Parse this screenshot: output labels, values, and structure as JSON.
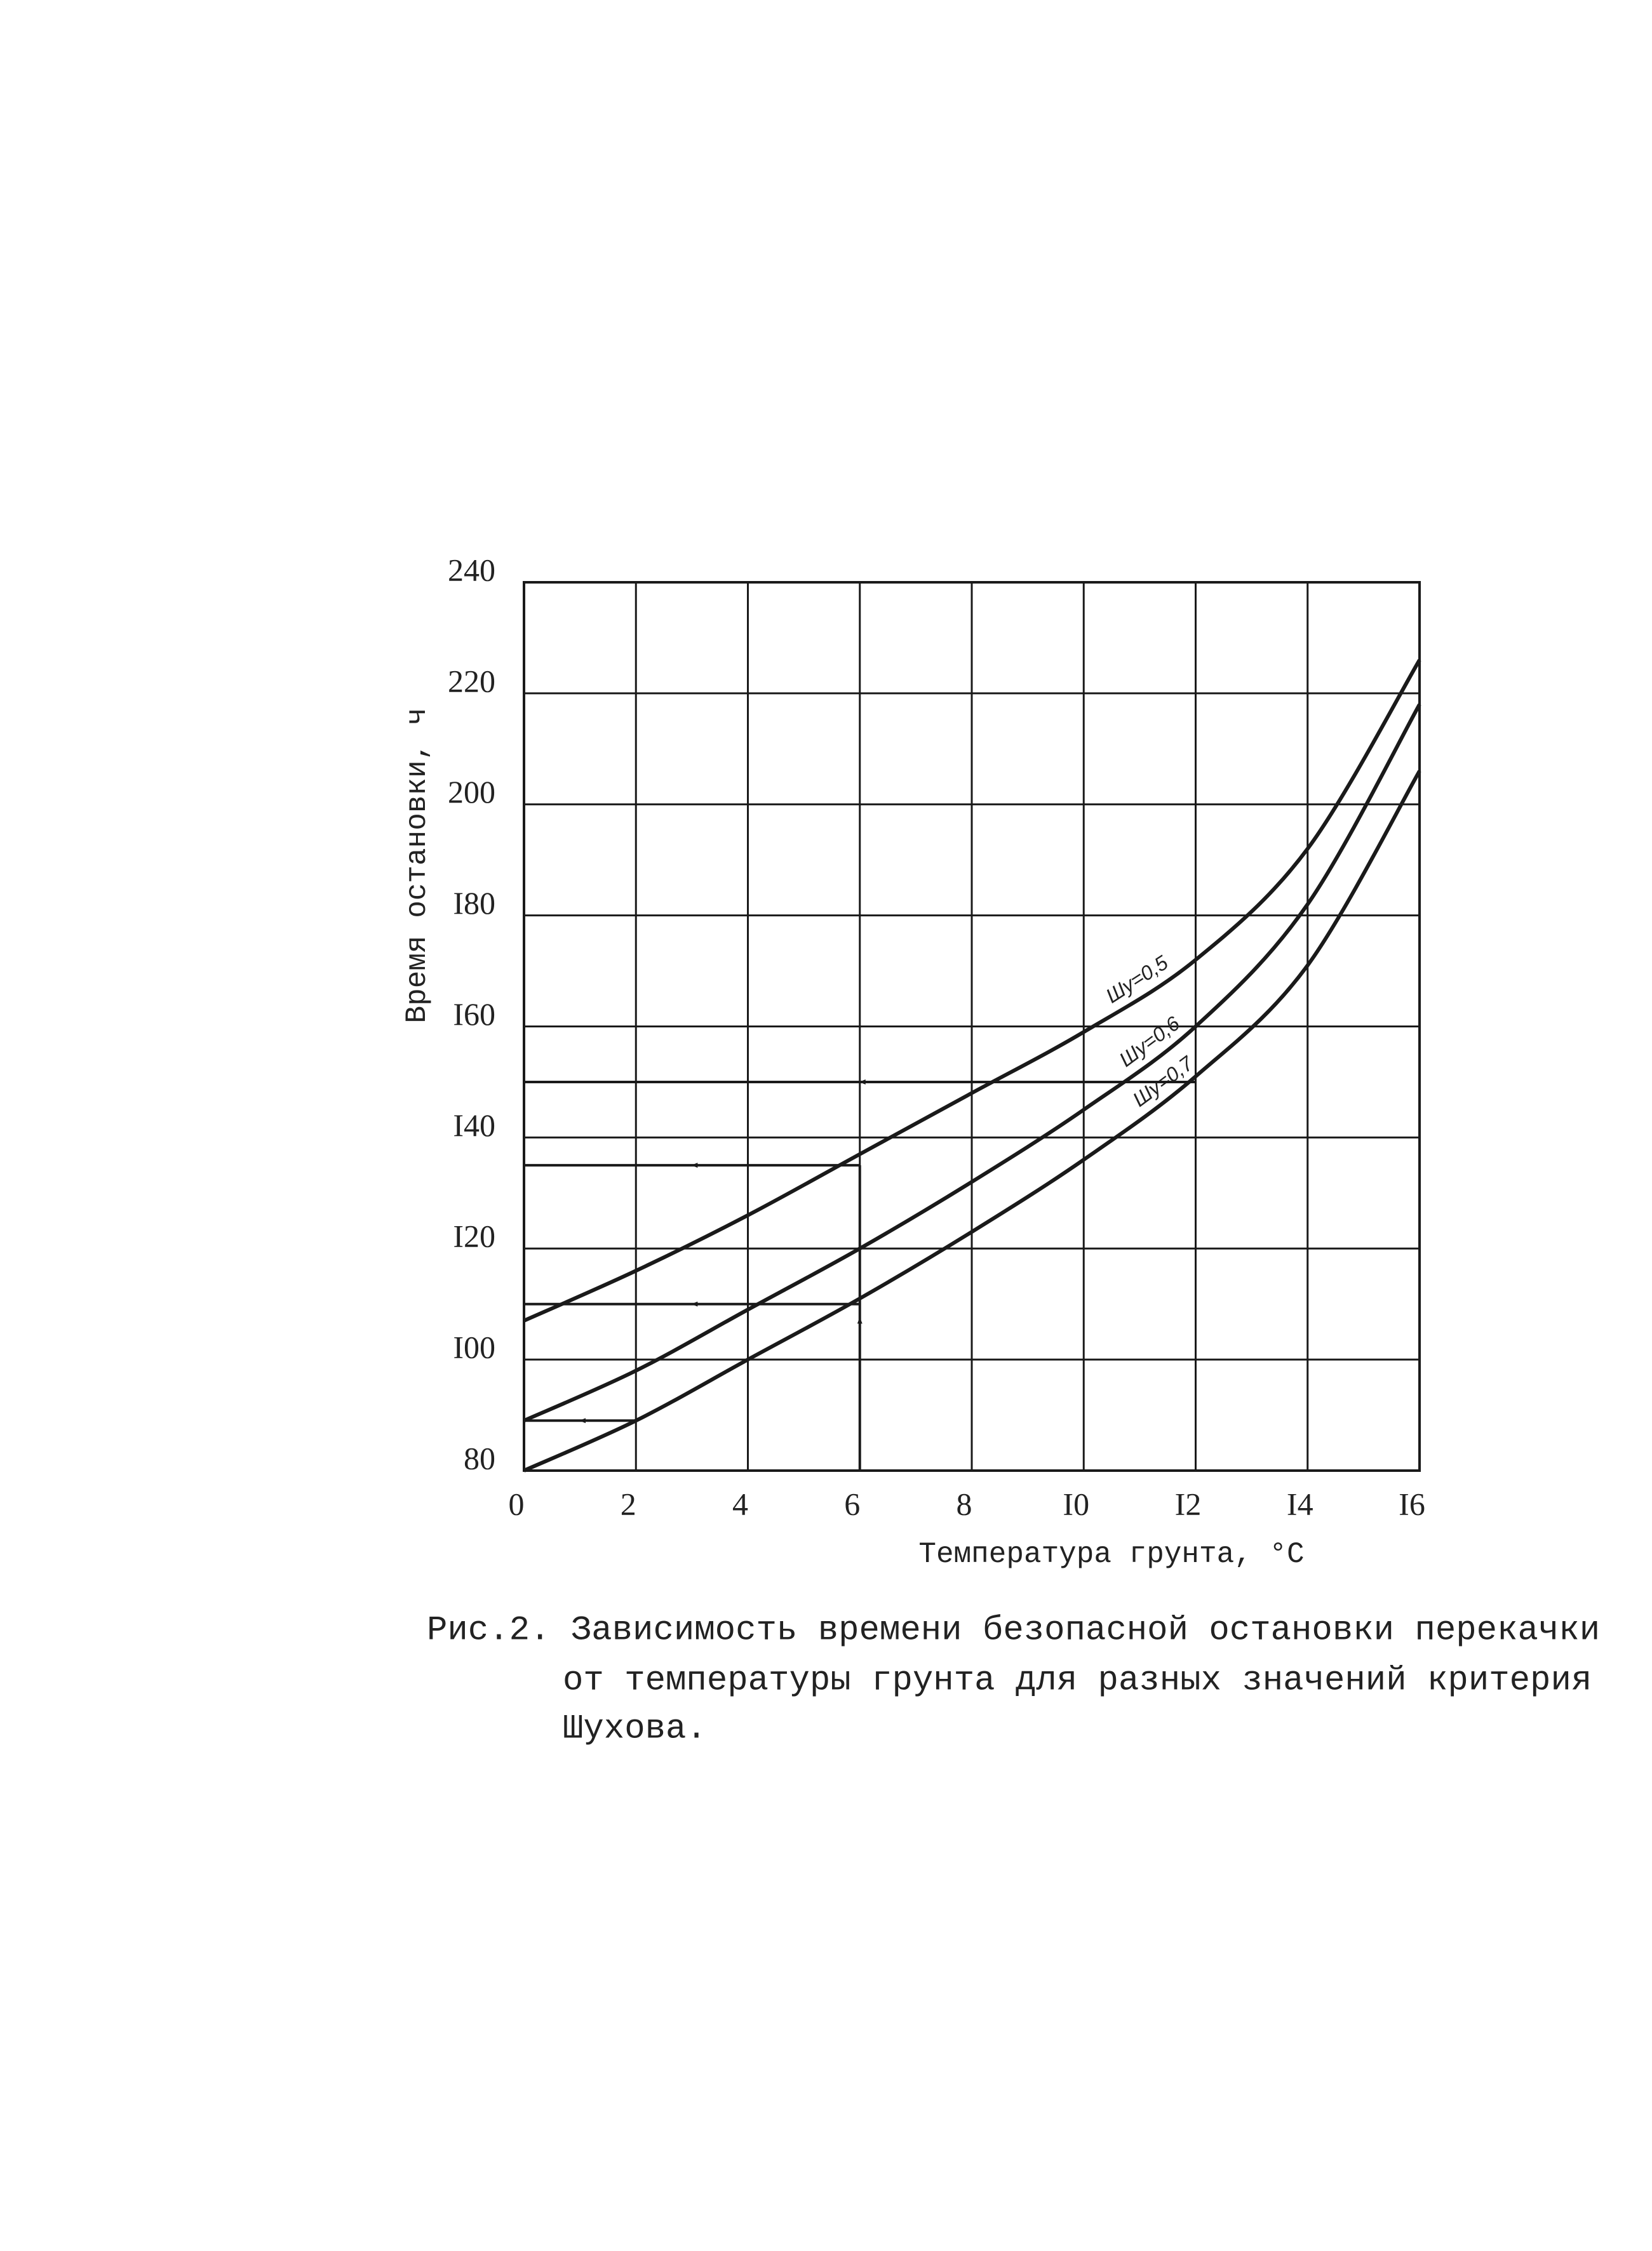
{
  "chart_data": {
    "type": "line",
    "x_label": "Температура грунта, °С",
    "y_label": "Время остановки, ч",
    "caption": [
      "Рис.2. Зависимость времени безопасной остановки перекачки",
      "от температуры грунта для разных значений критерия",
      "Шухова."
    ],
    "x": [
      0,
      2,
      4,
      6,
      8,
      10,
      12,
      14,
      16
    ],
    "series": [
      {
        "name": "Шу=0,5",
        "color": "#1a1a1a",
        "values": [
          107,
          116,
          126,
          137,
          148,
          159,
          172,
          192,
          226
        ]
      },
      {
        "name": "Шу=0,6",
        "color": "#1a1a1a",
        "values": [
          89,
          98,
          109,
          120,
          132,
          145,
          160,
          182,
          218
        ]
      },
      {
        "name": "Шу=0,7",
        "color": "#1a1a1a",
        "values": [
          80,
          89,
          100,
          111,
          123,
          136,
          151,
          171,
          206
        ]
      }
    ],
    "guide_lines": [
      {
        "x": [
          12,
          0
        ],
        "y": [
          150,
          150
        ]
      },
      {
        "x": [
          6,
          0
        ],
        "y": [
          135,
          135
        ]
      },
      {
        "x": [
          6,
          0
        ],
        "y": [
          110,
          110
        ]
      },
      {
        "x": [
          2,
          0
        ],
        "y": [
          89,
          89
        ]
      },
      {
        "x": [
          6,
          6
        ],
        "y": [
          80,
          135
        ]
      }
    ],
    "xlim": [
      0,
      16
    ],
    "xticks": [
      0,
      2,
      4,
      6,
      8,
      {
        "value": 10,
        "label": "I0"
      },
      {
        "value": 12,
        "label": "I2"
      },
      {
        "value": 14,
        "label": "I4"
      },
      {
        "value": 16,
        "label": "I6"
      }
    ],
    "ylim": [
      80,
      240
    ],
    "yticks": [
      80,
      {
        "value": 100,
        "label": "I00"
      },
      {
        "value": 120,
        "label": "I20"
      },
      {
        "value": 140,
        "label": "I40"
      },
      {
        "value": 160,
        "label": "I60"
      },
      {
        "value": 180,
        "label": "I80"
      },
      200,
      220,
      240
    ],
    "grid": true
  }
}
